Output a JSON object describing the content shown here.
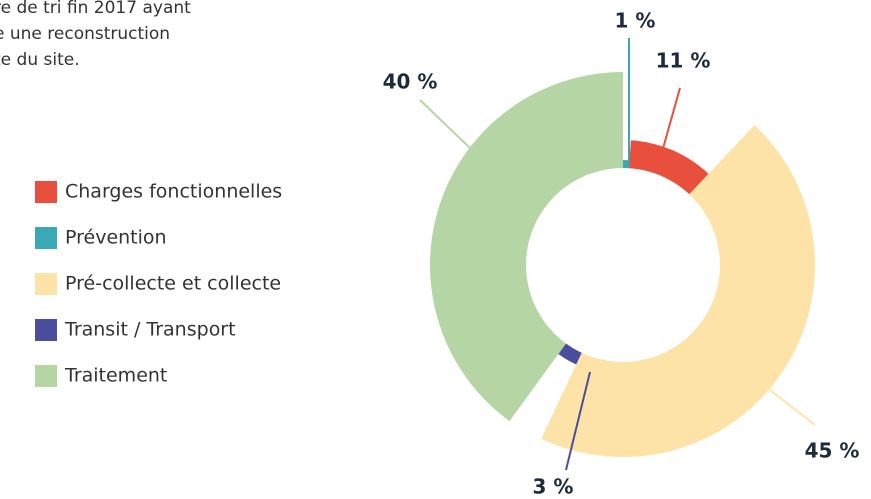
{
  "intro_lines": [
    "re de tri fin 2017 ayant",
    "e une reconstruction",
    "te du site."
  ],
  "chart_data": {
    "type": "donut",
    "categories": [
      "Charges fonctionnelles",
      "Prévention",
      "Pré-collecte et collecte",
      "Transit / Transport",
      "Traitement"
    ],
    "values": [
      11,
      1,
      45,
      3,
      40
    ],
    "value_labels": [
      "11 %",
      "1 %",
      "45 %",
      "3 %",
      "40 %"
    ],
    "colors": [
      "#e94f3d",
      "#3aa9b5",
      "#fde3a7",
      "#4a4e9c",
      "#b5d6a4"
    ],
    "legend": "left"
  }
}
